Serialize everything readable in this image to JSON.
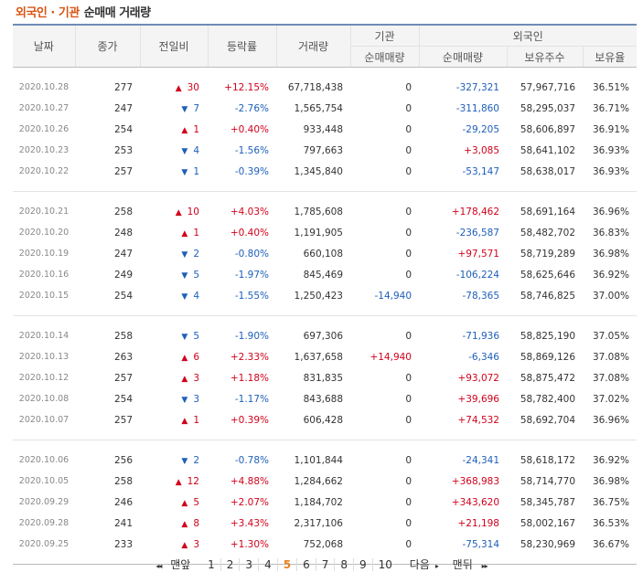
{
  "title": {
    "org": "외국인 · 기관",
    "sub": "순매매 거래량"
  },
  "headers": {
    "date": "날짜",
    "close": "종가",
    "diff": "전일비",
    "rate": "등락률",
    "volume": "거래량",
    "inst": "기관",
    "inst_net": "순매매량",
    "foreign": "외국인",
    "foreign_net": "순매매량",
    "foreign_hold": "보유주수",
    "foreign_ratio": "보유율"
  },
  "groups": [
    [
      {
        "date": "2020.10.28",
        "close": "277",
        "dir": "up",
        "diff": "30",
        "rate": "+12.15%",
        "volume": "67,718,438",
        "inst": "0",
        "fnet": "-327,321",
        "hold": "57,967,716",
        "ratio": "36.51%"
      },
      {
        "date": "2020.10.27",
        "close": "247",
        "dir": "down",
        "diff": "7",
        "rate": "-2.76%",
        "volume": "1,565,754",
        "inst": "0",
        "fnet": "-311,860",
        "hold": "58,295,037",
        "ratio": "36.71%"
      },
      {
        "date": "2020.10.26",
        "close": "254",
        "dir": "up",
        "diff": "1",
        "rate": "+0.40%",
        "volume": "933,448",
        "inst": "0",
        "fnet": "-29,205",
        "hold": "58,606,897",
        "ratio": "36.91%"
      },
      {
        "date": "2020.10.23",
        "close": "253",
        "dir": "down",
        "diff": "4",
        "rate": "-1.56%",
        "volume": "797,663",
        "inst": "0",
        "fnet": "+3,085",
        "hold": "58,641,102",
        "ratio": "36.93%"
      },
      {
        "date": "2020.10.22",
        "close": "257",
        "dir": "down",
        "diff": "1",
        "rate": "-0.39%",
        "volume": "1,345,840",
        "inst": "0",
        "fnet": "-53,147",
        "hold": "58,638,017",
        "ratio": "36.93%"
      }
    ],
    [
      {
        "date": "2020.10.21",
        "close": "258",
        "dir": "up",
        "diff": "10",
        "rate": "+4.03%",
        "volume": "1,785,608",
        "inst": "0",
        "fnet": "+178,462",
        "hold": "58,691,164",
        "ratio": "36.96%"
      },
      {
        "date": "2020.10.20",
        "close": "248",
        "dir": "up",
        "diff": "1",
        "rate": "+0.40%",
        "volume": "1,191,905",
        "inst": "0",
        "fnet": "-236,587",
        "hold": "58,482,702",
        "ratio": "36.83%"
      },
      {
        "date": "2020.10.19",
        "close": "247",
        "dir": "down",
        "diff": "2",
        "rate": "-0.80%",
        "volume": "660,108",
        "inst": "0",
        "fnet": "+97,571",
        "hold": "58,719,289",
        "ratio": "36.98%"
      },
      {
        "date": "2020.10.16",
        "close": "249",
        "dir": "down",
        "diff": "5",
        "rate": "-1.97%",
        "volume": "845,469",
        "inst": "0",
        "fnet": "-106,224",
        "hold": "58,625,646",
        "ratio": "36.92%"
      },
      {
        "date": "2020.10.15",
        "close": "254",
        "dir": "down",
        "diff": "4",
        "rate": "-1.55%",
        "volume": "1,250,423",
        "inst": "-14,940",
        "fnet": "-78,365",
        "hold": "58,746,825",
        "ratio": "37.00%"
      }
    ],
    [
      {
        "date": "2020.10.14",
        "close": "258",
        "dir": "down",
        "diff": "5",
        "rate": "-1.90%",
        "volume": "697,306",
        "inst": "0",
        "fnet": "-71,936",
        "hold": "58,825,190",
        "ratio": "37.05%"
      },
      {
        "date": "2020.10.13",
        "close": "263",
        "dir": "up",
        "diff": "6",
        "rate": "+2.33%",
        "volume": "1,637,658",
        "inst": "+14,940",
        "fnet": "-6,346",
        "hold": "58,869,126",
        "ratio": "37.08%"
      },
      {
        "date": "2020.10.12",
        "close": "257",
        "dir": "up",
        "diff": "3",
        "rate": "+1.18%",
        "volume": "831,835",
        "inst": "0",
        "fnet": "+93,072",
        "hold": "58,875,472",
        "ratio": "37.08%"
      },
      {
        "date": "2020.10.08",
        "close": "254",
        "dir": "down",
        "diff": "3",
        "rate": "-1.17%",
        "volume": "843,688",
        "inst": "0",
        "fnet": "+39,696",
        "hold": "58,782,400",
        "ratio": "37.02%"
      },
      {
        "date": "2020.10.07",
        "close": "257",
        "dir": "up",
        "diff": "1",
        "rate": "+0.39%",
        "volume": "606,428",
        "inst": "0",
        "fnet": "+74,532",
        "hold": "58,692,704",
        "ratio": "36.96%"
      }
    ],
    [
      {
        "date": "2020.10.06",
        "close": "256",
        "dir": "down",
        "diff": "2",
        "rate": "-0.78%",
        "volume": "1,101,844",
        "inst": "0",
        "fnet": "-24,341",
        "hold": "58,618,172",
        "ratio": "36.92%"
      },
      {
        "date": "2020.10.05",
        "close": "258",
        "dir": "up",
        "diff": "12",
        "rate": "+4.88%",
        "volume": "1,284,662",
        "inst": "0",
        "fnet": "+368,983",
        "hold": "58,714,770",
        "ratio": "36.98%"
      },
      {
        "date": "2020.09.29",
        "close": "246",
        "dir": "up",
        "diff": "5",
        "rate": "+2.07%",
        "volume": "1,184,702",
        "inst": "0",
        "fnet": "+343,620",
        "hold": "58,345,787",
        "ratio": "36.75%"
      },
      {
        "date": "2020.09.28",
        "close": "241",
        "dir": "up",
        "diff": "8",
        "rate": "+3.43%",
        "volume": "2,317,106",
        "inst": "0",
        "fnet": "+21,198",
        "hold": "58,002,167",
        "ratio": "36.53%"
      },
      {
        "date": "2020.09.25",
        "close": "233",
        "dir": "up",
        "diff": "3",
        "rate": "+1.30%",
        "volume": "752,068",
        "inst": "0",
        "fnet": "-75,314",
        "hold": "58,230,969",
        "ratio": "36.67%"
      }
    ]
  ],
  "pager": {
    "first": "맨앞",
    "prev_arrow": "◂◂",
    "pages": [
      "1",
      "2",
      "3",
      "4",
      "5",
      "6",
      "7",
      "8",
      "9",
      "10"
    ],
    "current": "5",
    "next": "다음",
    "last": "맨뒤",
    "next_arrow": "▸",
    "last_arrow": "▸▸"
  },
  "colors": {
    "up": "#d0021b",
    "down": "#1e5fba",
    "title": "#d85614",
    "current_page": "#e8821e"
  },
  "icons": {
    "up": "triangle-up-icon",
    "down": "triangle-down-icon"
  }
}
